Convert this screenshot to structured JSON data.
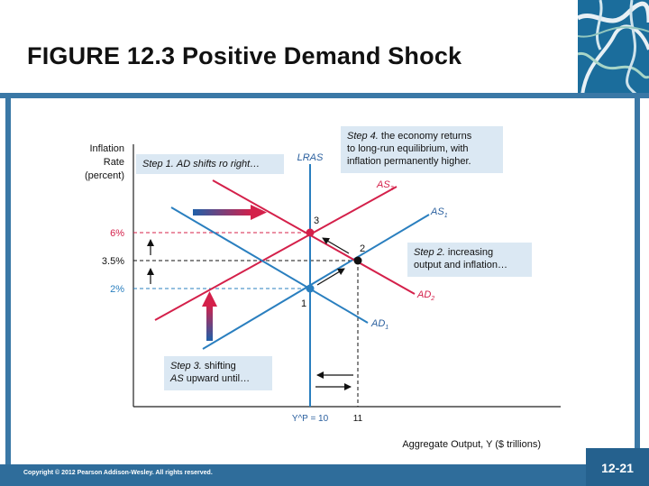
{
  "slide": {
    "title": "FIGURE 12.3  Positive Demand Shock",
    "copyright": "Copyright © 2012 Pearson Addison-Wesley. All rights reserved.",
    "slide_number": "12-21"
  },
  "colors": {
    "brand_blue": "#2f6d9b",
    "as_blue": "#2a7fbf",
    "shifted_red": "#d4204a",
    "callout_bg": "#dbe8f3"
  },
  "diagram": {
    "y_axis_label": [
      "Inflation",
      "Rate",
      "(percent)"
    ],
    "x_axis_label": "Aggregate Output, Y ($ trillions)",
    "y_ticks": [
      "6%",
      "3.5%",
      "2%"
    ],
    "x_ticks": [
      "Y^P = 10",
      "11"
    ],
    "curve_labels": {
      "lras": "LRAS",
      "as1": "AS",
      "as1_sub": "1",
      "as3": "AS",
      "as3_sub": "3",
      "ad1": "AD",
      "ad1_sub": "1",
      "ad2": "AD",
      "ad2_sub": "2"
    },
    "points": [
      "1",
      "2",
      "3"
    ],
    "steps": {
      "step1_prefix": "Step 1.",
      "step1_text": "AD shifts ro right…",
      "step2_prefix": "Step 2.",
      "step2_text1": "increasing",
      "step2_text2": "output and inflation…",
      "step3_prefix": "Step 3.",
      "step3_text1": "shifting",
      "step3_as": "AS",
      "step3_text2": "upward until…",
      "step4_prefix": "Step 4.",
      "step4_text1": "the economy returns",
      "step4_text2": "to long-run equilibrium, with",
      "step4_text3": "inflation permanently higher."
    }
  }
}
